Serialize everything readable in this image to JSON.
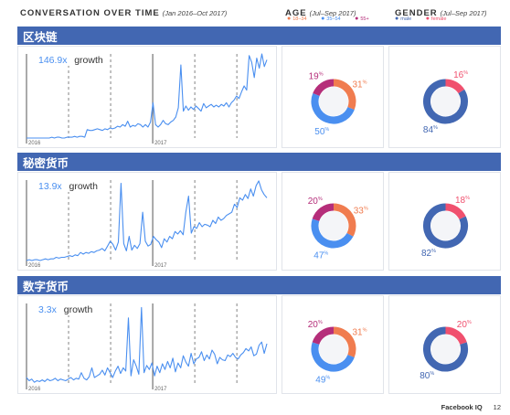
{
  "header": {
    "conversation_title": "CONVERSATION OVER TIME",
    "conversation_range": "(Jan 2016–Oct 2017)",
    "age_title": "AGE",
    "age_range": "(Jul–Sep 2017)",
    "gender_title": "GENDER",
    "gender_range": "(Jul–Sep 2017)"
  },
  "legends": {
    "age": [
      {
        "label": "18–34",
        "color": "#f07c4f"
      },
      {
        "label": "35–54",
        "color": "#4a8ff0"
      },
      {
        "label": "55+",
        "color": "#b52e7a"
      }
    ],
    "gender": [
      {
        "label": "male",
        "color": "#4267b2"
      },
      {
        "label": "female",
        "color": "#f0506e"
      }
    ]
  },
  "colors": {
    "bar": "#4267b2",
    "line": "#4a8ff0",
    "age_18_34": "#f07c4f",
    "age_35_54": "#4a8ff0",
    "age_55_plus": "#b52e7a",
    "male": "#4267b2",
    "female": "#f0506e"
  },
  "footer": {
    "brand": "Facebook IQ",
    "page_number": "12"
  },
  "chart_data": [
    {
      "type": "line",
      "section": "区块链",
      "growth_value": "146.9x",
      "growth_label": "growth",
      "year_labels": [
        "2016",
        "2017"
      ],
      "ylim": [
        0,
        100
      ],
      "values": [
        0,
        0,
        0,
        0,
        0,
        0,
        0,
        0,
        0,
        0,
        1,
        0,
        1,
        1,
        0,
        0,
        1,
        1,
        1,
        2,
        1,
        2,
        2,
        1,
        10,
        9,
        9,
        10,
        11,
        10,
        9,
        11,
        10,
        12,
        11,
        12,
        14,
        13,
        16,
        14,
        20,
        13,
        15,
        14,
        17,
        16,
        13,
        16,
        13,
        19,
        42,
        16,
        13,
        16,
        21,
        17,
        16,
        19,
        21,
        25,
        36,
        87,
        32,
        38,
        33,
        37,
        34,
        38,
        35,
        32,
        41,
        36,
        38,
        40,
        37,
        39,
        37,
        40,
        38,
        42,
        37,
        42,
        45,
        50,
        47,
        55,
        62,
        57,
        98,
        90,
        72,
        95,
        83,
        100,
        85,
        93
      ]
    },
    {
      "type": "line",
      "section": "秘密货币",
      "growth_value": "13.9x",
      "growth_label": "growth",
      "year_labels": [
        "2016",
        "2017"
      ],
      "ylim": [
        0,
        100
      ],
      "values": [
        0,
        1,
        0,
        1,
        1,
        0,
        1,
        2,
        1,
        2,
        2,
        4,
        3,
        4,
        4,
        5,
        6,
        5,
        7,
        6,
        10,
        8,
        10,
        9,
        11,
        10,
        12,
        13,
        15,
        12,
        18,
        24,
        20,
        13,
        23,
        96,
        21,
        12,
        30,
        13,
        19,
        15,
        21,
        60,
        24,
        18,
        20,
        30,
        26,
        23,
        16,
        27,
        23,
        30,
        27,
        36,
        33,
        37,
        32,
        60,
        80,
        34,
        42,
        40,
        47,
        42,
        45,
        44,
        42,
        50,
        46,
        54,
        50,
        52,
        56,
        58,
        60,
        70,
        66,
        78,
        75,
        82,
        77,
        89,
        80,
        93,
        99,
        88,
        82,
        78
      ]
    },
    {
      "type": "line",
      "section": "数字货币",
      "growth_value": "3.3x",
      "growth_label": "growth",
      "year_labels": [
        "2016",
        "2017"
      ],
      "ylim": [
        0,
        100
      ],
      "values": [
        8,
        4,
        6,
        2,
        4,
        3,
        5,
        3,
        6,
        4,
        5,
        7,
        4,
        6,
        5,
        4,
        6,
        8,
        5,
        7,
        6,
        14,
        7,
        5,
        9,
        20,
        8,
        10,
        12,
        17,
        11,
        20,
        14,
        8,
        16,
        22,
        13,
        20,
        16,
        82,
        10,
        30,
        22,
        12,
        95,
        14,
        23,
        18,
        26,
        10,
        22,
        14,
        25,
        18,
        28,
        20,
        32,
        15,
        26,
        20,
        35,
        27,
        22,
        38,
        25,
        31,
        33,
        40,
        29,
        36,
        31,
        42,
        37,
        25,
        33,
        30,
        29,
        36,
        34,
        38,
        33,
        31,
        36,
        39,
        44,
        41,
        46,
        35,
        37,
        48,
        52,
        38,
        50
      ]
    },
    {
      "type": "pie",
      "section": "区块链",
      "group": "age",
      "labels": [
        "18–34",
        "35–54",
        "55+"
      ],
      "values": [
        31,
        50,
        19
      ]
    },
    {
      "type": "pie",
      "section": "区块链",
      "group": "gender",
      "labels": [
        "male",
        "female"
      ],
      "values": [
        84,
        16
      ]
    },
    {
      "type": "pie",
      "section": "秘密货币",
      "group": "age",
      "labels": [
        "18–34",
        "35–54",
        "55+"
      ],
      "values": [
        33,
        47,
        20
      ]
    },
    {
      "type": "pie",
      "section": "秘密货币",
      "group": "gender",
      "labels": [
        "male",
        "female"
      ],
      "values": [
        82,
        18
      ]
    },
    {
      "type": "pie",
      "section": "数字货币",
      "group": "age",
      "labels": [
        "18–34",
        "35–54",
        "55+"
      ],
      "values": [
        31,
        49,
        20
      ]
    },
    {
      "type": "pie",
      "section": "数字货币",
      "group": "gender",
      "labels": [
        "male",
        "female"
      ],
      "values": [
        80,
        20
      ]
    }
  ]
}
